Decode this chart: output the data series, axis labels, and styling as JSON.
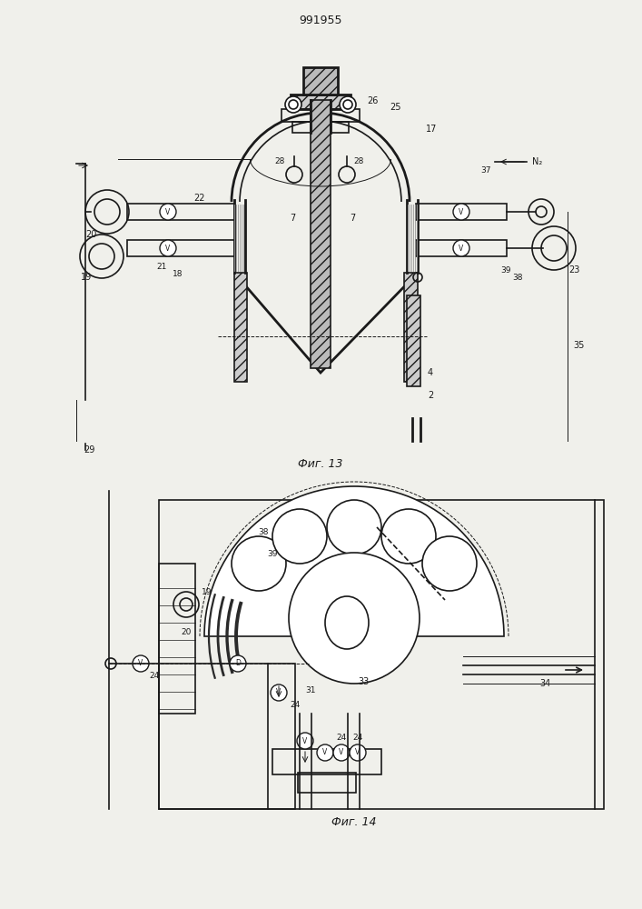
{
  "title": "991955",
  "fig1_caption": "Фиг. 13",
  "fig2_caption": "Фиг. 14",
  "bg_color": "#f0f0eb",
  "line_color": "#1a1a1a"
}
